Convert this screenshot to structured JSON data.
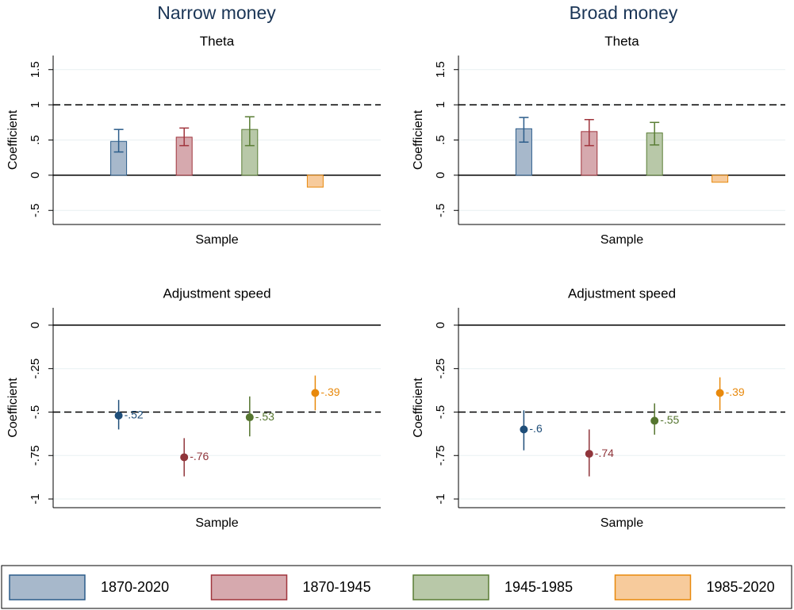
{
  "panel_titles": [
    "Narrow money",
    "Broad money"
  ],
  "legend": [
    {
      "name": "1870-2020",
      "color": "#2b5c8a",
      "fill": "#a7b8cb",
      "dot": "#1f4e79"
    },
    {
      "name": "1870-1945",
      "color": "#a0343c",
      "fill": "#d6a9ae",
      "dot": "#90353b"
    },
    {
      "name": "1945-1985",
      "color": "#5a7d35",
      "fill": "#b8c8a8",
      "dot": "#55752f"
    },
    {
      "name": "1985-2020",
      "color": "#e8890c",
      "fill": "#f7cb9c",
      "dot": "#e8890c"
    }
  ],
  "chart_data": [
    {
      "type": "bar",
      "title": "Theta",
      "ylabel": "Coefficient",
      "xlabel": "Sample",
      "values": [
        0.48,
        0.54,
        0.65,
        -0.17
      ],
      "ci_low": [
        0.33,
        0.42,
        0.42,
        null
      ],
      "ci_high": [
        0.65,
        0.67,
        0.83,
        null
      ],
      "ylim": [
        -0.7,
        1.7
      ],
      "yticks": [
        {
          "value": -0.5,
          "label": "-.5"
        },
        0,
        {
          "value": 0.5,
          "label": ".5"
        },
        1,
        1.5
      ],
      "refline": 1,
      "grid": true
    },
    {
      "type": "bar",
      "title": "Theta",
      "ylabel": "Coefficient",
      "xlabel": "Sample",
      "values": [
        0.66,
        0.62,
        0.6,
        -0.1
      ],
      "ci_low": [
        0.47,
        0.42,
        0.43,
        null
      ],
      "ci_high": [
        0.82,
        0.79,
        0.75,
        null
      ],
      "ylim": [
        -0.7,
        1.7
      ],
      "yticks": [
        {
          "value": -0.5,
          "label": "-.5"
        },
        0,
        {
          "value": 0.5,
          "label": ".5"
        },
        1,
        1.5
      ],
      "refline": 1,
      "grid": true
    },
    {
      "type": "dot",
      "title": "Adjustment speed",
      "ylabel": "Coefficient",
      "xlabel": "Sample",
      "values": [
        -0.52,
        -0.76,
        -0.53,
        -0.39
      ],
      "value_labels": [
        "-.52",
        "-.76",
        "-.53",
        "-.39"
      ],
      "ci_low": [
        -0.6,
        -0.87,
        -0.64,
        -0.49
      ],
      "ci_high": [
        -0.43,
        -0.65,
        -0.41,
        -0.29
      ],
      "ylim": [
        -1.05,
        0.1
      ],
      "yticks": [
        -1,
        {
          "value": -0.75,
          "label": "-.75"
        },
        {
          "value": -0.5,
          "label": "-.5"
        },
        {
          "value": -0.25,
          "label": "-.25"
        },
        0
      ],
      "refline": -0.5,
      "grid": true
    },
    {
      "type": "dot",
      "title": "Adjustment speed",
      "ylabel": "Coefficient",
      "xlabel": "Sample",
      "values": [
        -0.6,
        -0.74,
        -0.55,
        -0.39
      ],
      "value_labels": [
        "-.6",
        "-.74",
        "-.55",
        "-.39"
      ],
      "ci_low": [
        -0.72,
        -0.87,
        -0.63,
        -0.49
      ],
      "ci_high": [
        -0.49,
        -0.6,
        -0.45,
        -0.3
      ],
      "ylim": [
        -1.05,
        0.1
      ],
      "yticks": [
        -1,
        {
          "value": -0.75,
          "label": "-.75"
        },
        {
          "value": -0.5,
          "label": "-.5"
        },
        {
          "value": -0.25,
          "label": "-.25"
        },
        0
      ],
      "refline": -0.5,
      "grid": true
    }
  ]
}
